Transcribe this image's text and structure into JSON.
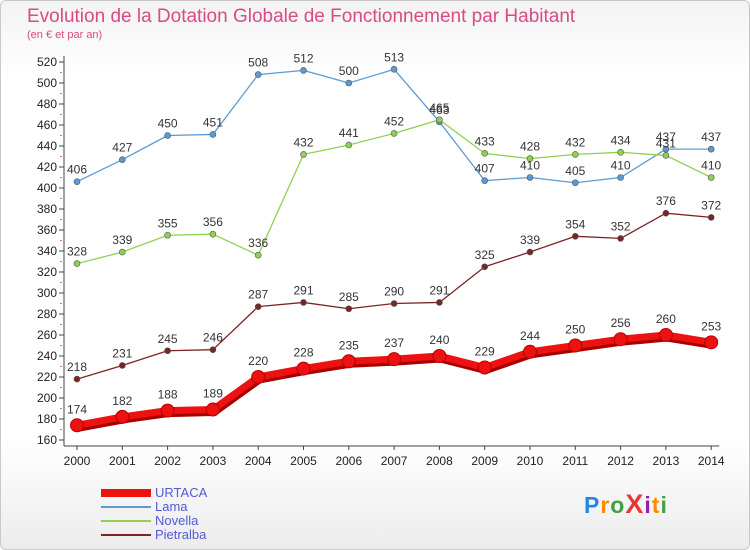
{
  "title": "Evolution de la Dotation Globale de Fonctionnement par Habitant",
  "subtitle": "(en € et par an)",
  "logo": {
    "text": "ProXiti",
    "letters": [
      "P",
      "r",
      "o",
      "X",
      "i",
      "t",
      "i"
    ],
    "colors": [
      "#1e88e5",
      "#fb8c00",
      "#43a047",
      "#e53935",
      "#8e24aa",
      "#fb8c00",
      "#43a047"
    ]
  },
  "chart_data": {
    "type": "line",
    "title": "Evolution de la Dotation Globale de Fonctionnement par Habitant",
    "ylabel": "(en € et par an)",
    "xlabel": "",
    "categories": [
      "2000",
      "2001",
      "2002",
      "2003",
      "2004",
      "2005",
      "2006",
      "2007",
      "2008",
      "2009",
      "2010",
      "2011",
      "2012",
      "2013",
      "2014"
    ],
    "ylim": [
      160,
      520
    ],
    "yticks": [
      160,
      180,
      200,
      220,
      240,
      260,
      280,
      300,
      320,
      340,
      360,
      380,
      400,
      420,
      440,
      460,
      480,
      500,
      520
    ],
    "grid": false,
    "legend_position": "bottom-left",
    "series": [
      {
        "name": "URTACA",
        "color": "#ee1111",
        "values": [
          174,
          182,
          188,
          189,
          220,
          228,
          235,
          237,
          240,
          229,
          244,
          250,
          256,
          260,
          253
        ]
      },
      {
        "name": "Lama",
        "color": "#5b9bd5",
        "values": [
          406,
          427,
          450,
          451,
          508,
          512,
          500,
          513,
          463,
          407,
          410,
          405,
          410,
          437,
          437
        ]
      },
      {
        "name": "Novella",
        "color": "#8fd14f",
        "values": [
          328,
          339,
          355,
          356,
          336,
          432,
          441,
          452,
          465,
          433,
          428,
          432,
          434,
          431,
          410
        ]
      },
      {
        "name": "Pietralba",
        "color": "#7a2525",
        "values": [
          218,
          231,
          245,
          246,
          287,
          291,
          285,
          290,
          291,
          325,
          339,
          354,
          352,
          376,
          372
        ]
      }
    ]
  }
}
